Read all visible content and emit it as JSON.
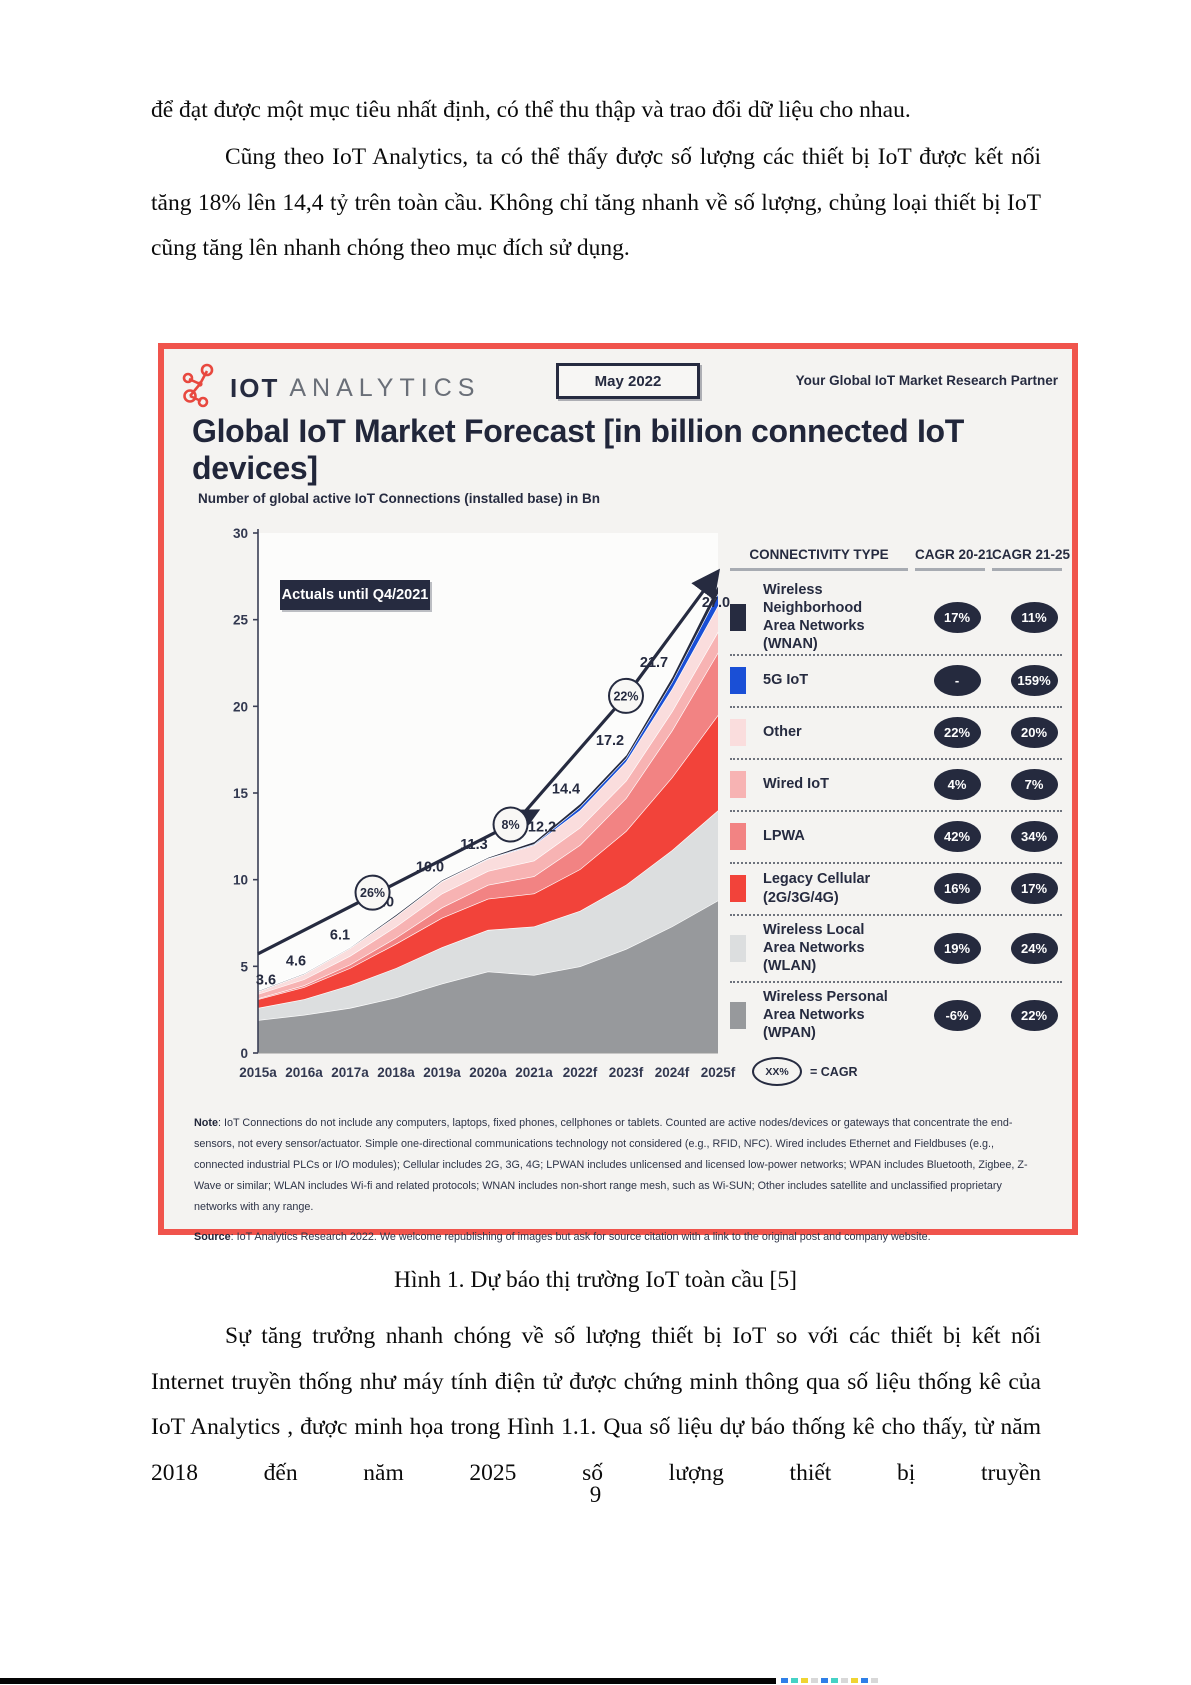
{
  "document": {
    "paragraph1": "để đạt được một mục tiêu nhất định, có thể thu thập và trao đổi dữ liệu cho nhau.",
    "paragraph2": "Cũng theo IoT Analytics, ta có thể thấy được số lượng các thiết bị IoT được kết nối tăng 18% lên 14,4 tỷ trên toàn cầu. Không chỉ tăng nhanh về số lượng, chủng loại thiết bị IoT cũng tăng lên nhanh chóng theo mục đích sử dụng.",
    "caption": "Hình 1. Dự báo thị trường IoT toàn cầu [5]",
    "paragraph3": "Sự tăng trưởng nhanh chóng về số lượng thiết bị IoT so với các thiết bị kết nối Internet truyền thống như máy tính điện tử được chứng minh thông qua số liệu thống kê của IoT Analytics , được minh họa trong Hình 1.1. Qua số liệu dự báo thống kê cho thấy, từ năm 2018 đến năm 2025 số lượng thiết bị truyền",
    "page_number": "9"
  },
  "figure": {
    "brand": {
      "iot": "IOT",
      "analytics": "ANALYTICS",
      "logo_color": "#e8483f"
    },
    "date_badge": "May 2022",
    "partner_text": "Your Global IoT Market Research Partner",
    "title": "Global IoT Market Forecast [in billion connected IoT devices]",
    "subtitle": "Number of global active IoT Connections (installed base) in Bn",
    "actuals_badge": "Actuals until Q4/2021",
    "border_color": "#f0544c",
    "accent_navy": "#262b40",
    "legend": {
      "headers": [
        "CONNECTIVITY TYPE",
        "CAGR 20-21",
        "CAGR 21-25"
      ],
      "rows": [
        {
          "label_lines": [
            "Wireless Neighborhood",
            "Area Networks (WNAN)"
          ],
          "color": "#262b40",
          "cagr_20_21": "17%",
          "cagr_21_25": "11%"
        },
        {
          "label_lines": [
            "5G IoT"
          ],
          "color": "#1a4fd6",
          "cagr_20_21": "-",
          "cagr_21_25": "159%"
        },
        {
          "label_lines": [
            "Other"
          ],
          "color": "#fadddd",
          "cagr_20_21": "22%",
          "cagr_21_25": "20%"
        },
        {
          "label_lines": [
            "Wired IoT"
          ],
          "color": "#f7b3b3",
          "cagr_20_21": "4%",
          "cagr_21_25": "7%"
        },
        {
          "label_lines": [
            "LPWA"
          ],
          "color": "#f28383",
          "cagr_20_21": "42%",
          "cagr_21_25": "34%"
        },
        {
          "label_lines": [
            "Legacy Cellular (2G/3G/4G)"
          ],
          "color": "#f2433a",
          "cagr_20_21": "16%",
          "cagr_21_25": "17%"
        },
        {
          "label_lines": [
            "Wireless Local",
            "Area Networks (WLAN)"
          ],
          "color": "#dcdedf",
          "cagr_20_21": "19%",
          "cagr_21_25": "24%"
        },
        {
          "label_lines": [
            "Wireless Personal",
            "Area Networks (WPAN)"
          ],
          "color": "#97999c",
          "cagr_20_21": "-6%",
          "cagr_21_25": "22%"
        }
      ]
    },
    "cagr_key": {
      "bubble": "XX%",
      "text": "= CAGR"
    },
    "note_label": "Note",
    "note_text": ": IoT Connections do not include any computers, laptops, fixed phones, cellphones or tablets. Counted are active nodes/devices or gateways that concentrate the end-sensors, not every sensor/actuator. Simple one-directional communications technology not considered (e.g., RFID, NFC). Wired includes Ethernet and Fieldbuses (e.g., connected industrial PLCs or I/O modules); Cellular includes 2G, 3G, 4G;  LPWAN includes unlicensed and licensed low-power networks; WPAN includes Bluetooth, Zigbee, Z-Wave or similar; WLAN includes Wi-fi and related protocols; WNAN includes non-short range mesh, such as Wi-SUN; Other includes satellite and unclassified proprietary networks with any range.",
    "source_label": "Source",
    "source_text": ": IoT Analytics Research 2022. We welcome republishing of images but ask for source citation with a link to the original post and company website."
  },
  "chart_data": {
    "type": "area",
    "stacked": true,
    "title": "Global IoT Market Forecast [in billion connected IoT devices]",
    "subtitle": "Number of global active IoT Connections (installed base) in Bn",
    "x_categories": [
      "2015a",
      "2016a",
      "2017a",
      "2018a",
      "2019a",
      "2020a",
      "2021a",
      "2022f",
      "2023f",
      "2024f",
      "2025f"
    ],
    "totals": [
      3.6,
      4.6,
      6.1,
      8.0,
      10.0,
      11.3,
      12.2,
      14.4,
      17.2,
      21.7,
      27.0
    ],
    "total_labels": [
      "3.6",
      "4.6",
      "6.1",
      "8.0",
      "10.0",
      "11.3",
      "12.2",
      "14.4",
      "17.2",
      "21.7",
      "27.0"
    ],
    "ylim": [
      0,
      30
    ],
    "yticks": [
      0,
      5,
      10,
      15,
      20,
      25,
      30
    ],
    "grid": false,
    "legend_position": "right",
    "series": [
      {
        "name": "Wireless Personal Area Networks (WPAN)",
        "color": "#97999c",
        "values": [
          1.9,
          2.2,
          2.6,
          3.2,
          4.0,
          4.7,
          4.5,
          5.0,
          6.0,
          7.3,
          8.8
        ]
      },
      {
        "name": "Wireless Local Area Networks (WLAN)",
        "color": "#dcdedf",
        "values": [
          0.7,
          0.9,
          1.3,
          1.7,
          2.1,
          2.4,
          2.8,
          3.2,
          3.7,
          4.4,
          5.2
        ]
      },
      {
        "name": "Legacy Cellular (2G/3G/4G)",
        "color": "#f2433a",
        "values": [
          0.5,
          0.7,
          1.0,
          1.4,
          1.7,
          1.8,
          1.9,
          2.4,
          3.1,
          4.2,
          5.5
        ]
      },
      {
        "name": "LPWA",
        "color": "#f28383",
        "values": [
          0.05,
          0.1,
          0.2,
          0.35,
          0.6,
          0.8,
          1.0,
          1.4,
          1.9,
          2.7,
          3.6
        ]
      },
      {
        "name": "Wired IoT",
        "color": "#f7b3b3",
        "values": [
          0.25,
          0.35,
          0.5,
          0.65,
          0.8,
          0.8,
          0.9,
          1.0,
          1.0,
          1.1,
          1.2
        ]
      },
      {
        "name": "Other",
        "color": "#fadddd",
        "values": [
          0.15,
          0.3,
          0.45,
          0.6,
          0.7,
          0.7,
          0.9,
          1.0,
          1.1,
          1.3,
          1.5
        ]
      },
      {
        "name": "5G IoT",
        "color": "#1a4fd6",
        "values": [
          0,
          0,
          0,
          0,
          0.02,
          0.03,
          0.05,
          0.2,
          0.2,
          0.4,
          0.7
        ]
      },
      {
        "name": "Wireless Neighborhood Area Networks (WNAN)",
        "color": "#262b40",
        "values": [
          0.05,
          0.05,
          0.05,
          0.1,
          0.08,
          0.07,
          0.15,
          0.2,
          0.2,
          0.3,
          0.5
        ]
      }
    ],
    "trend_arrow": {
      "color": "#262b40",
      "segments": [
        [
          [
            0,
            5.72
          ],
          [
            5.95,
            13.8
          ]
        ],
        [
          [
            5.6,
            13.3
          ],
          [
            8.0,
            20.6
          ],
          [
            9.92,
            27.5
          ]
        ]
      ],
      "cagr_bubbles": [
        {
          "label": "26%",
          "x": 2.49,
          "y": 9.25
        },
        {
          "label": "8%",
          "x": 5.49,
          "y": 13.18
        },
        {
          "label": "22%",
          "x": 8.0,
          "y": 20.6
        }
      ]
    }
  }
}
